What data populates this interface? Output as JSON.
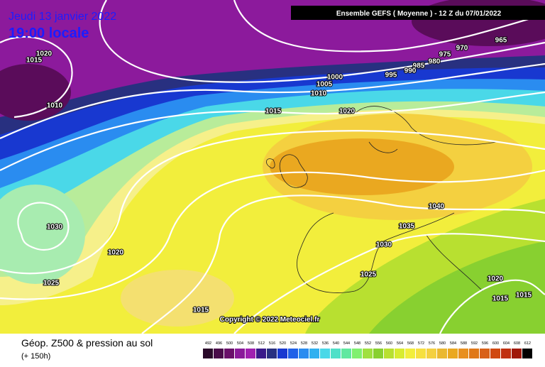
{
  "header": {
    "date": "Jeudi 13 janvier 2022",
    "time": "19:00 locale",
    "run": "Ensemble GEFS  ( Moyenne )  -  12 Z du 07/01/2022"
  },
  "isobar_labels": [
    "965",
    "970",
    "975",
    "980",
    "985",
    "990",
    "995",
    "1000",
    "1005",
    "1010",
    "1015",
    "1020",
    "1020",
    "1015",
    "1010",
    "1030",
    "1020",
    "1025",
    "1015",
    "1040",
    "1035",
    "1030",
    "1025",
    "1020",
    "1015",
    "1015"
  ],
  "footer": {
    "title": "Géop. Z500 & pression au sol",
    "lead": "(+ 150h)",
    "copyright": "Copyright © 2022 Meteociel.fr"
  },
  "legend": {
    "labels": [
      "492",
      "496",
      "500",
      "504",
      "508",
      "512",
      "516",
      "520",
      "524",
      "528",
      "532",
      "536",
      "540",
      "544",
      "548",
      "552",
      "556",
      "560",
      "564",
      "568",
      "572",
      "576",
      "580",
      "584",
      "588",
      "592",
      "596",
      "600",
      "604",
      "608",
      "612"
    ]
  }
}
